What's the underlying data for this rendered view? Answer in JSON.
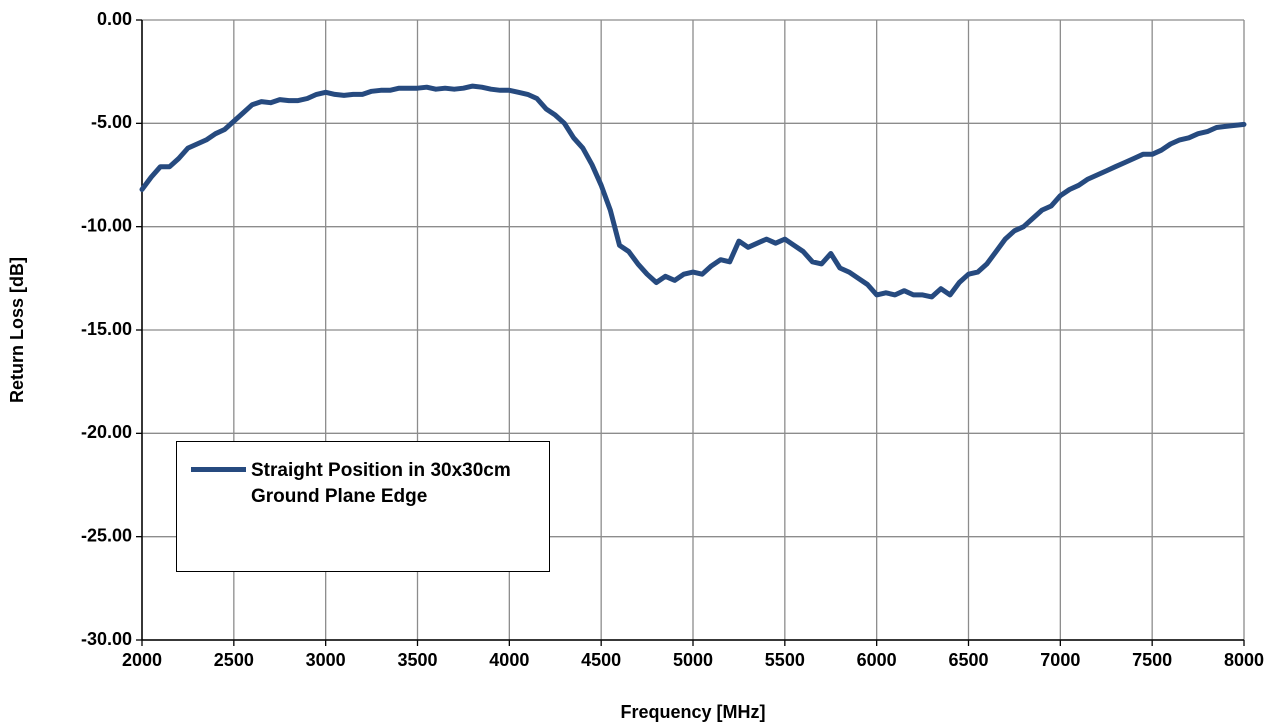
{
  "chart_data": {
    "type": "line",
    "x_label": "Frequency [MHz]",
    "y_label": "Return Loss [dB]",
    "x": [
      2000,
      2050,
      2100,
      2150,
      2200,
      2250,
      2300,
      2350,
      2400,
      2450,
      2500,
      2550,
      2600,
      2650,
      2700,
      2750,
      2800,
      2850,
      2900,
      2950,
      3000,
      3050,
      3100,
      3150,
      3200,
      3250,
      3300,
      3350,
      3400,
      3450,
      3500,
      3550,
      3600,
      3650,
      3700,
      3750,
      3800,
      3850,
      3900,
      3950,
      4000,
      4050,
      4100,
      4150,
      4200,
      4250,
      4300,
      4350,
      4400,
      4450,
      4500,
      4550,
      4600,
      4650,
      4700,
      4750,
      4800,
      4850,
      4900,
      4950,
      5000,
      5050,
      5100,
      5150,
      5200,
      5250,
      5300,
      5350,
      5400,
      5450,
      5500,
      5550,
      5600,
      5650,
      5700,
      5750,
      5800,
      5850,
      5900,
      5950,
      6000,
      6050,
      6100,
      6150,
      6200,
      6250,
      6300,
      6350,
      6400,
      6450,
      6500,
      6550,
      6600,
      6650,
      6700,
      6750,
      6800,
      6850,
      6900,
      6950,
      7000,
      7050,
      7100,
      7150,
      7200,
      7250,
      7300,
      7350,
      7400,
      7450,
      7500,
      7550,
      7600,
      7650,
      7700,
      7750,
      7800,
      7850,
      7900,
      7950,
      8000
    ],
    "series": [
      {
        "name": "Straight Position in 30x30cm Ground Plane Edge",
        "color": "#264a7f",
        "values": [
          -8.2,
          -7.6,
          -7.1,
          -7.1,
          -6.7,
          -6.2,
          -6.0,
          -5.8,
          -5.5,
          -5.3,
          -4.9,
          -4.5,
          -4.1,
          -3.95,
          -4.0,
          -3.85,
          -3.9,
          -3.9,
          -3.8,
          -3.6,
          -3.5,
          -3.6,
          -3.65,
          -3.6,
          -3.6,
          -3.45,
          -3.4,
          -3.4,
          -3.3,
          -3.3,
          -3.3,
          -3.25,
          -3.35,
          -3.3,
          -3.35,
          -3.3,
          -3.2,
          -3.25,
          -3.35,
          -3.4,
          -3.4,
          -3.5,
          -3.6,
          -3.8,
          -4.3,
          -4.6,
          -5.0,
          -5.7,
          -6.2,
          -7.0,
          -8.0,
          -9.2,
          -10.9,
          -11.2,
          -11.8,
          -12.3,
          -12.7,
          -12.4,
          -12.6,
          -12.3,
          -12.2,
          -12.3,
          -11.9,
          -11.6,
          -11.7,
          -10.7,
          -11.0,
          -10.8,
          -10.6,
          -10.8,
          -10.6,
          -10.9,
          -11.2,
          -11.7,
          -11.8,
          -11.3,
          -12.0,
          -12.2,
          -12.5,
          -12.8,
          -13.3,
          -13.2,
          -13.3,
          -13.1,
          -13.3,
          -13.3,
          -13.4,
          -13.0,
          -13.3,
          -12.7,
          -12.3,
          -12.2,
          -11.8,
          -11.2,
          -10.6,
          -10.2,
          -10.0,
          -9.6,
          -9.2,
          -9.0,
          -8.5,
          -8.2,
          -8.0,
          -7.7,
          -7.5,
          -7.3,
          -7.1,
          -6.9,
          -6.7,
          -6.5,
          -6.5,
          -6.3,
          -6.0,
          -5.8,
          -5.7,
          -5.5,
          -5.4,
          -5.2,
          -5.15,
          -5.1,
          -5.05
        ]
      }
    ],
    "xlim": [
      2000,
      8000
    ],
    "xticks": [
      2000,
      2500,
      3000,
      3500,
      4000,
      4500,
      5000,
      5500,
      6000,
      6500,
      7000,
      7500,
      8000
    ],
    "ylim": [
      -30,
      0
    ],
    "yticks": [
      {
        "value": -30,
        "label": "-30.00"
      },
      {
        "value": -25,
        "label": "-25.00"
      },
      {
        "value": -20,
        "label": "-20.00"
      },
      {
        "value": -15,
        "label": "-15.00"
      },
      {
        "value": -10,
        "label": "-10.00"
      },
      {
        "value": -5,
        "label": "-5.00"
      },
      {
        "value": 0,
        "label": "0.00"
      }
    ],
    "grid": true,
    "legend": "lower-left"
  }
}
